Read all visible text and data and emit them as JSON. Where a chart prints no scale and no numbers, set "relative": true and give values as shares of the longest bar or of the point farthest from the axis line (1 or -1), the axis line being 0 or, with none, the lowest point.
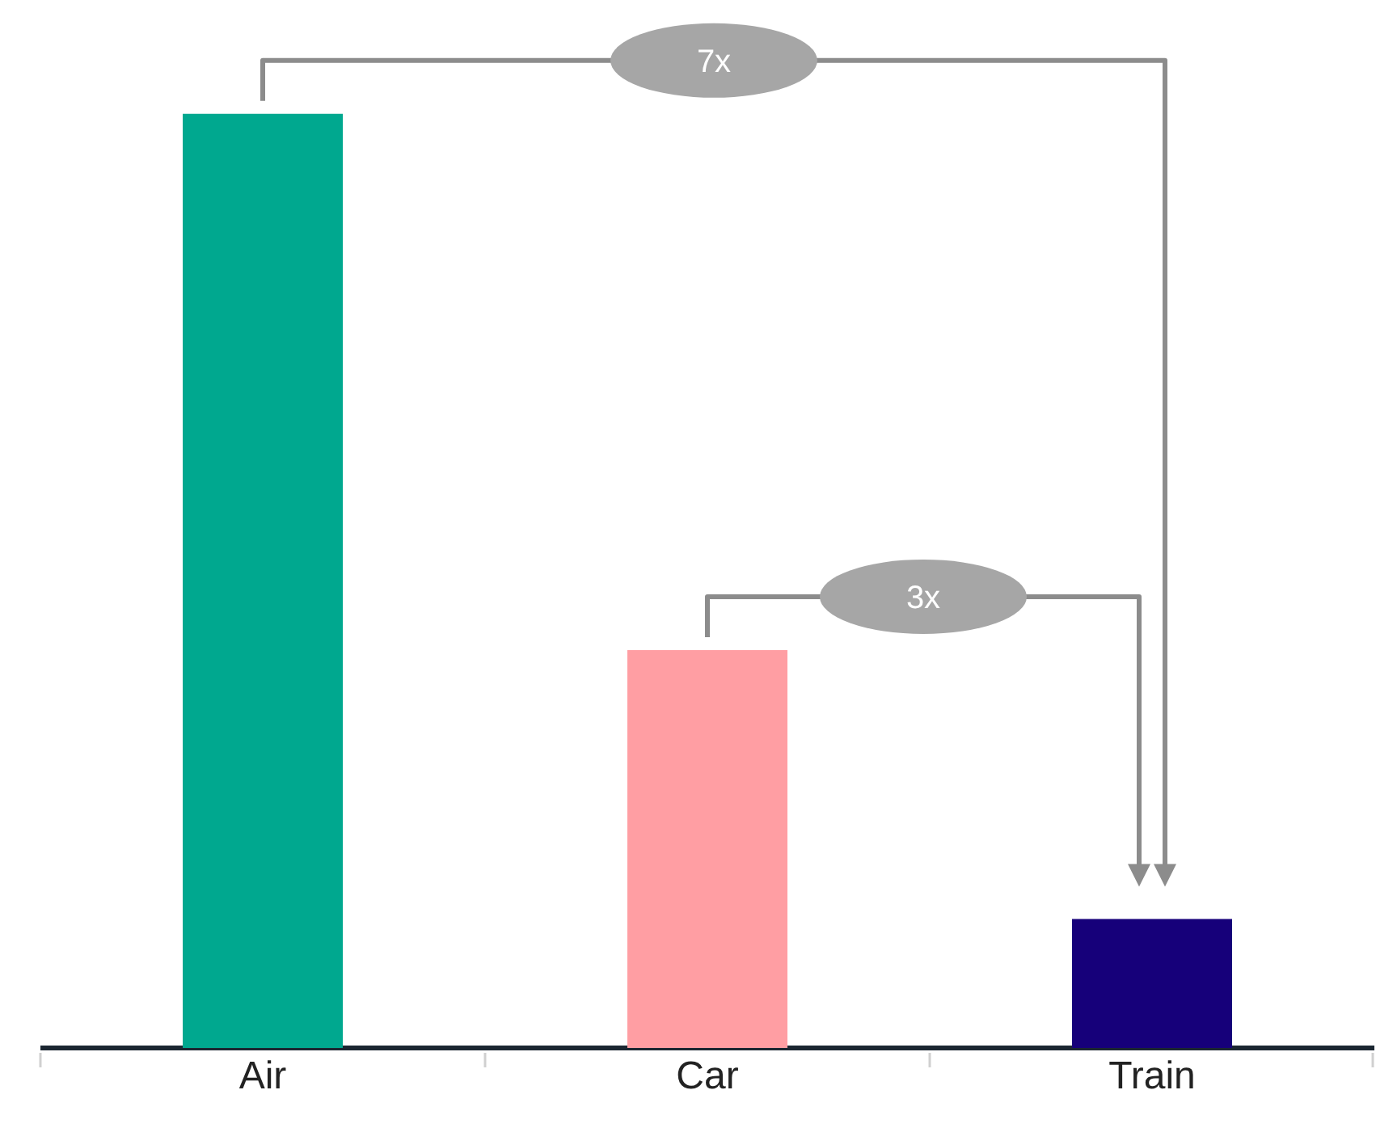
{
  "chart_data": {
    "type": "bar",
    "relative": true,
    "categories": [
      "Air",
      "Car",
      "Train"
    ],
    "values": [
      1,
      0.426,
      0.138
    ],
    "colors": [
      "#00a88f",
      "#ff9ea3",
      "#16007a"
    ],
    "annotations": [
      "7x",
      "3x"
    ]
  }
}
